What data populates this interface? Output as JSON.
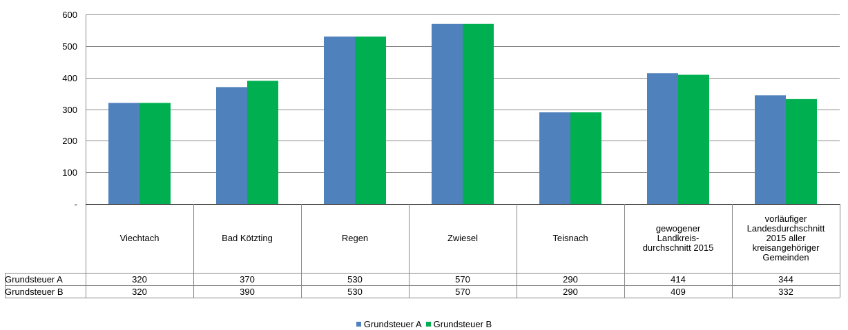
{
  "chart_data": {
    "type": "bar",
    "title": "",
    "xlabel": "",
    "ylabel": "",
    "ylim": [
      0,
      600
    ],
    "yticks": [
      {
        "value": 0,
        "label": "-"
      },
      {
        "value": 100,
        "label": "100"
      },
      {
        "value": 200,
        "label": "200"
      },
      {
        "value": 300,
        "label": "300"
      },
      {
        "value": 400,
        "label": "400"
      },
      {
        "value": 500,
        "label": "500"
      },
      {
        "value": 600,
        "label": "600"
      }
    ],
    "grid": true,
    "legend_position": "bottom",
    "categories": [
      "Viechtach",
      "Bad Kötzting",
      "Regen",
      "Zwiesel",
      "Teisnach",
      "gewogener\nLandkreis-\ndurchschnitt 2015",
      "vorläufiger\nLandesdurchschnitt\n2015 aller\nkreisangehöriger\nGemeinden"
    ],
    "series": [
      {
        "name": "Grundsteuer A",
        "color": "#4F81BD",
        "values": [
          320,
          370,
          530,
          570,
          290,
          414,
          344
        ]
      },
      {
        "name": "Grundsteuer B",
        "color": "#00B050",
        "values": [
          320,
          390,
          530,
          570,
          290,
          409,
          332
        ]
      }
    ]
  }
}
